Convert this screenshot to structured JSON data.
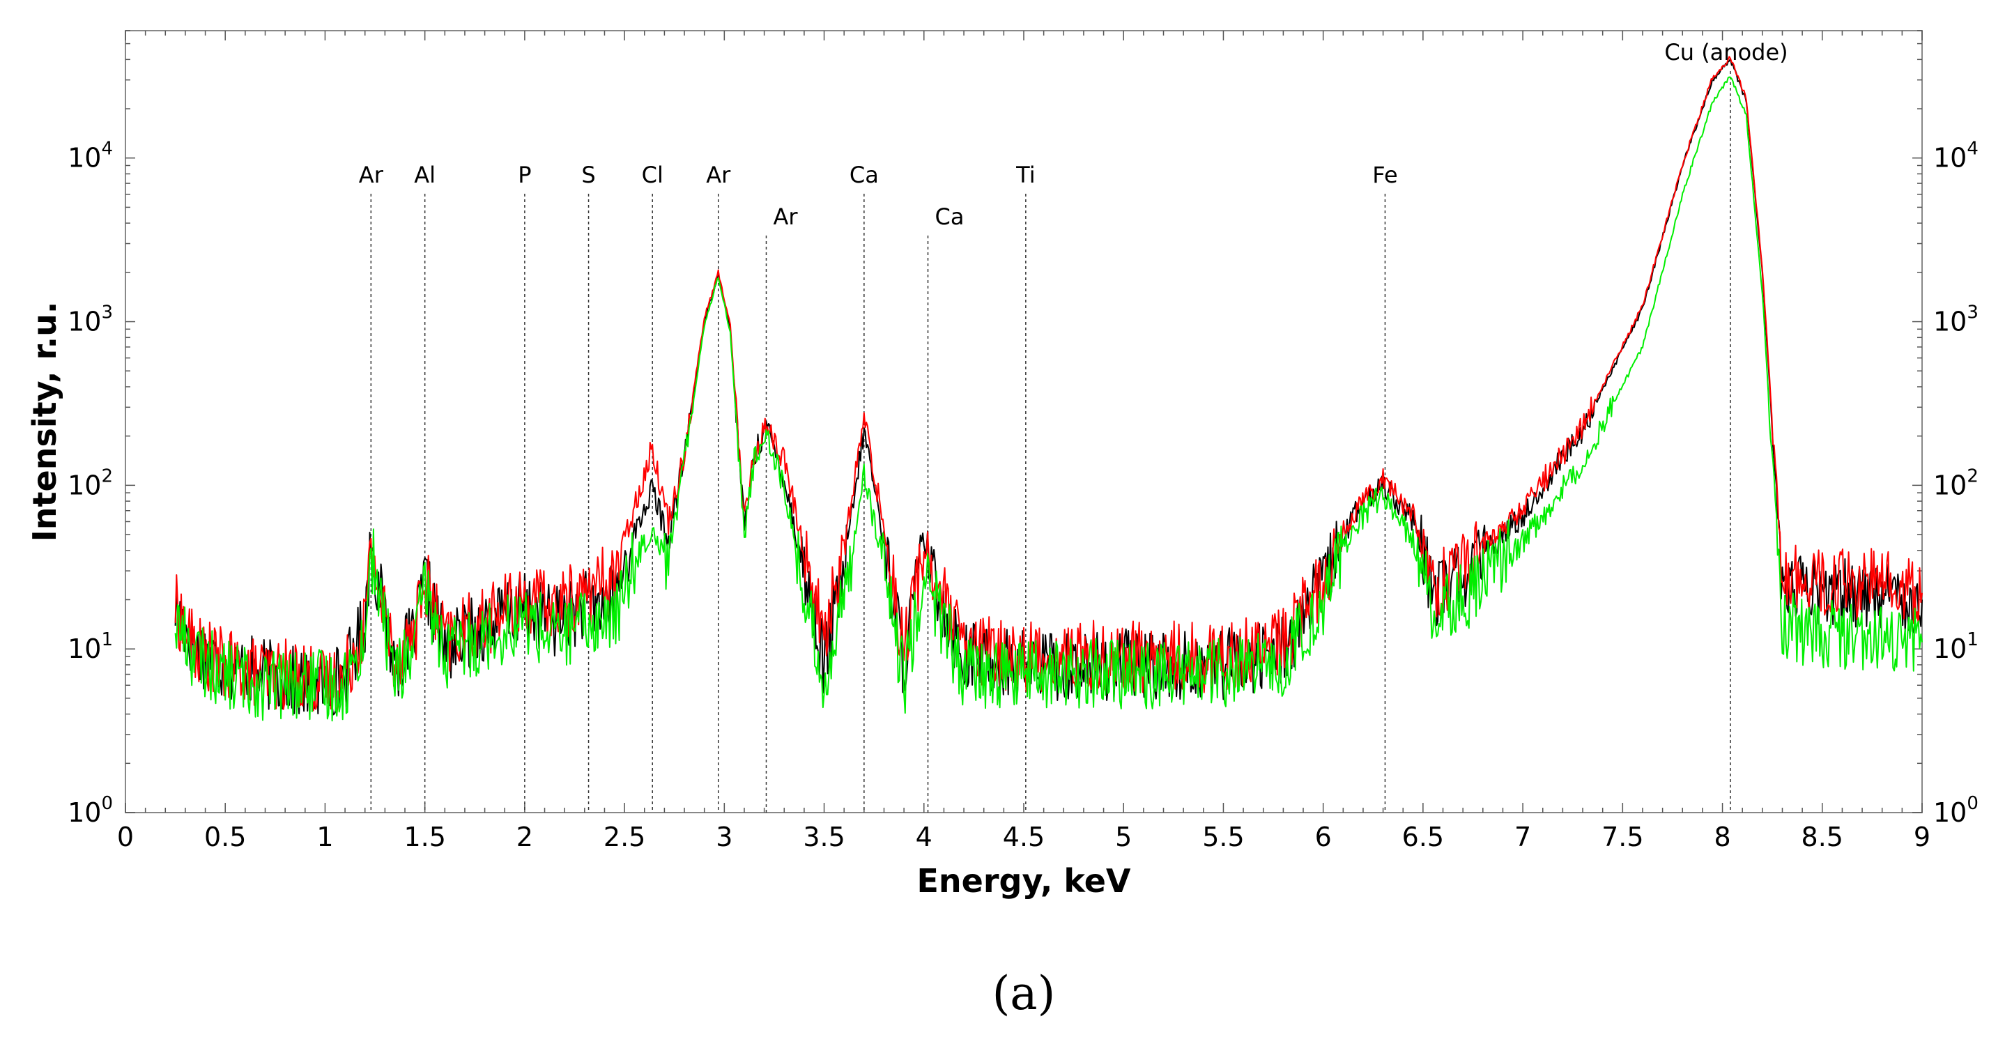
{
  "chart_data": {
    "type": "line",
    "title": "",
    "xlabel": "Energy, keV",
    "ylabel": "Intensity, r.u.",
    "caption": "(a)",
    "xlim": [
      0,
      9
    ],
    "ylim": [
      1,
      60000
    ],
    "yscale": "log",
    "grid": false,
    "legend": "none",
    "x_ticks": [
      "0",
      "0.5",
      "1",
      "1.5",
      "2",
      "2.5",
      "3",
      "3.5",
      "4",
      "4.5",
      "5",
      "5.5",
      "6",
      "6.5",
      "7",
      "7.5",
      "8",
      "8.5",
      "9"
    ],
    "y_ticks": [
      {
        "base": "10",
        "exp": "0",
        "value": 1
      },
      {
        "base": "10",
        "exp": "1",
        "value": 10
      },
      {
        "base": "10",
        "exp": "2",
        "value": 100
      },
      {
        "base": "10",
        "exp": "3",
        "value": 1000
      },
      {
        "base": "10",
        "exp": "4",
        "value": 10000
      }
    ],
    "annotations": [
      {
        "label": "Ar",
        "x": 1.23,
        "level": 0
      },
      {
        "label": "Al",
        "x": 1.5,
        "level": 0
      },
      {
        "label": "P",
        "x": 2.0,
        "level": 0
      },
      {
        "label": "S",
        "x": 2.32,
        "level": 0
      },
      {
        "label": "Cl",
        "x": 2.64,
        "level": 0
      },
      {
        "label": "Ar",
        "x": 2.97,
        "level": 0
      },
      {
        "label": "Ar",
        "x": 3.21,
        "level": 1
      },
      {
        "label": "Ca",
        "x": 3.7,
        "level": 0
      },
      {
        "label": "Ca",
        "x": 4.02,
        "level": 1
      },
      {
        "label": "Ti",
        "x": 4.51,
        "level": 0
      },
      {
        "label": "Fe",
        "x": 6.31,
        "level": 0
      },
      {
        "label": "Cu (anode)",
        "x": 8.04,
        "level": 2
      }
    ],
    "series": [
      {
        "color": "#000000",
        "x": [
          0.25,
          0.35,
          0.5,
          0.7,
          0.9,
          1.0,
          1.1,
          1.2,
          1.23,
          1.28,
          1.35,
          1.45,
          1.5,
          1.6,
          1.8,
          2.0,
          2.15,
          2.3,
          2.45,
          2.55,
          2.64,
          2.72,
          2.8,
          2.9,
          2.97,
          3.03,
          3.1,
          3.15,
          3.21,
          3.3,
          3.4,
          3.5,
          3.6,
          3.7,
          3.8,
          3.9,
          4.0,
          4.05,
          4.2,
          4.5,
          5.0,
          5.5,
          5.8,
          6.0,
          6.15,
          6.3,
          6.45,
          6.55,
          6.7,
          7.0,
          7.3,
          7.6,
          7.8,
          7.95,
          8.04,
          8.12,
          8.2,
          8.3,
          8.5,
          8.8,
          9.0
        ],
        "y": [
          18,
          10,
          8,
          7,
          6,
          6,
          7,
          15,
          45,
          20,
          8,
          12,
          26,
          10,
          14,
          18,
          15,
          18,
          20,
          50,
          95,
          45,
          150,
          1000,
          1950,
          900,
          55,
          150,
          230,
          110,
          30,
          8,
          30,
          220,
          45,
          8,
          48,
          25,
          9,
          8,
          8,
          8,
          10,
          25,
          65,
          105,
          60,
          22,
          28,
          65,
          220,
          1200,
          9000,
          30000,
          40000,
          22000,
          2000,
          25,
          22,
          22,
          20
        ]
      },
      {
        "color": "#ff0000",
        "x": [
          0.25,
          0.35,
          0.5,
          0.7,
          0.9,
          1.0,
          1.1,
          1.2,
          1.23,
          1.28,
          1.35,
          1.45,
          1.5,
          1.6,
          1.8,
          2.0,
          2.15,
          2.3,
          2.45,
          2.55,
          2.64,
          2.72,
          2.8,
          2.9,
          2.97,
          3.03,
          3.1,
          3.15,
          3.21,
          3.3,
          3.4,
          3.5,
          3.6,
          3.7,
          3.8,
          3.9,
          4.0,
          4.05,
          4.2,
          4.5,
          5.0,
          5.5,
          5.8,
          6.0,
          6.15,
          6.3,
          6.45,
          6.55,
          6.7,
          7.0,
          7.3,
          7.6,
          7.8,
          7.95,
          8.04,
          8.12,
          8.2,
          8.3,
          8.5,
          8.8,
          9.0
        ],
        "y": [
          18,
          10,
          8,
          7,
          7,
          6,
          7,
          15,
          42,
          20,
          9,
          13,
          27,
          11,
          15,
          20,
          18,
          22,
          28,
          75,
          170,
          60,
          160,
          1050,
          2000,
          950,
          60,
          155,
          235,
          140,
          40,
          12,
          40,
          260,
          55,
          10,
          42,
          28,
          10,
          9,
          9,
          9,
          11,
          27,
          68,
          115,
          65,
          24,
          32,
          72,
          230,
          1250,
          9200,
          31000,
          41000,
          23000,
          2100,
          28,
          25,
          25,
          22
        ]
      },
      {
        "color": "#00ee00",
        "x": [
          0.25,
          0.35,
          0.5,
          0.7,
          0.9,
          1.0,
          1.1,
          1.2,
          1.23,
          1.28,
          1.35,
          1.45,
          1.5,
          1.6,
          1.8,
          2.0,
          2.15,
          2.3,
          2.45,
          2.55,
          2.64,
          2.72,
          2.8,
          2.9,
          2.97,
          3.03,
          3.1,
          3.15,
          3.21,
          3.3,
          3.4,
          3.5,
          3.6,
          3.7,
          3.8,
          3.9,
          4.0,
          4.05,
          4.2,
          4.5,
          5.0,
          5.5,
          5.8,
          6.0,
          6.15,
          6.3,
          6.45,
          6.55,
          6.7,
          7.0,
          7.3,
          7.6,
          7.8,
          7.95,
          8.04,
          8.12,
          8.2,
          8.3,
          8.5,
          8.8,
          9.0
        ],
        "y": [
          15,
          9,
          7,
          6,
          6,
          6,
          6,
          12,
          40,
          18,
          7,
          10,
          24,
          9,
          12,
          15,
          12,
          14,
          15,
          35,
          55,
          35,
          140,
          950,
          1900,
          850,
          50,
          140,
          220,
          95,
          22,
          6,
          20,
          120,
          30,
          6,
          30,
          20,
          7,
          7,
          7,
          7,
          8,
          20,
          55,
          90,
          45,
          18,
          20,
          45,
          140,
          700,
          6000,
          22000,
          32000,
          18000,
          1500,
          14,
          12,
          12,
          11
        ]
      }
    ]
  }
}
